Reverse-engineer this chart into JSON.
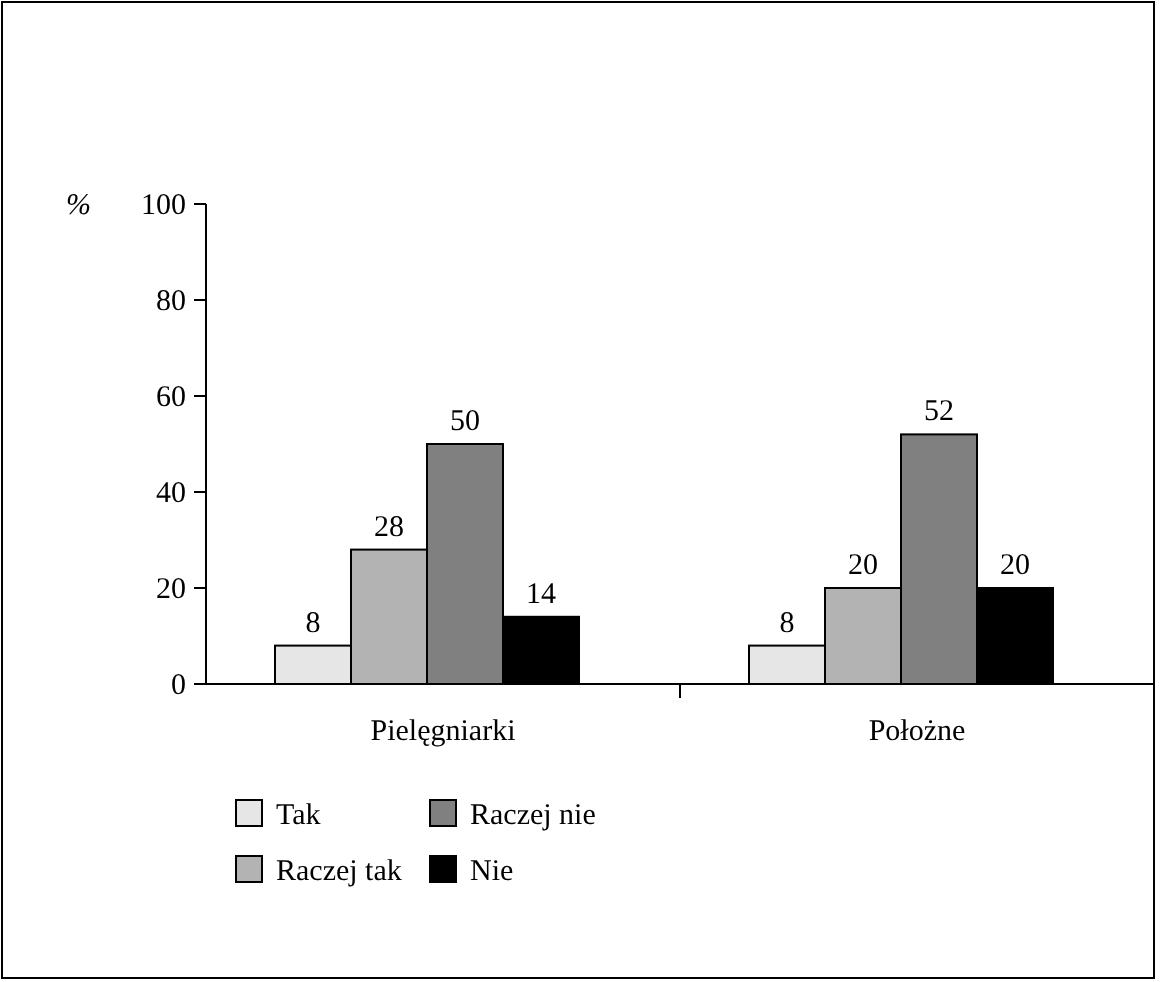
{
  "chart_data": {
    "type": "bar",
    "ylabel": "%",
    "categories": [
      "Pielęgniarki",
      "Położne"
    ],
    "series": [
      {
        "name": "Tak",
        "color": "#e6e6e6",
        "values": [
          8,
          8
        ]
      },
      {
        "name": "Raczej tak",
        "color": "#b3b3b3",
        "values": [
          28,
          20
        ]
      },
      {
        "name": "Raczej nie",
        "color": "#808080",
        "values": [
          50,
          52
        ]
      },
      {
        "name": "Nie",
        "color": "#000000",
        "values": [
          14,
          20
        ]
      }
    ],
    "ylim": [
      0,
      100
    ],
    "yticks": [
      0,
      20,
      40,
      60,
      80,
      100
    ],
    "data_labels": true,
    "legend": "bottom left",
    "grid": false
  }
}
